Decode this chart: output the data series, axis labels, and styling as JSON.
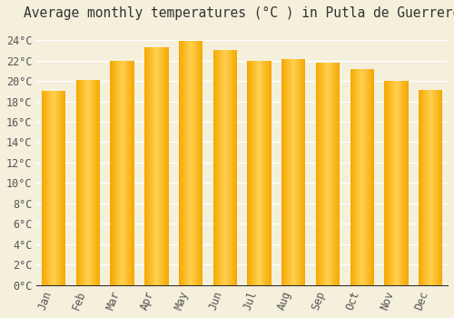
{
  "title": "Average monthly temperatures (°C ) in Putla de Guerrero",
  "months": [
    "Jan",
    "Feb",
    "Mar",
    "Apr",
    "May",
    "Jun",
    "Jul",
    "Aug",
    "Sep",
    "Oct",
    "Nov",
    "Dec"
  ],
  "values": [
    19.0,
    20.1,
    22.0,
    23.3,
    23.9,
    23.0,
    22.0,
    22.1,
    21.8,
    21.2,
    20.0,
    19.1
  ],
  "bar_color_center": "#FFD050",
  "bar_color_edge": "#F5A800",
  "background_color": "#F5F0DC",
  "grid_color": "#FFFFFF",
  "ytick_labels": [
    "0°C",
    "2°C",
    "4°C",
    "6°C",
    "8°C",
    "10°C",
    "12°C",
    "14°C",
    "16°C",
    "18°C",
    "20°C",
    "22°C",
    "24°C"
  ],
  "ytick_values": [
    0,
    2,
    4,
    6,
    8,
    10,
    12,
    14,
    16,
    18,
    20,
    22,
    24
  ],
  "ylim": [
    0,
    25.5
  ],
  "title_fontsize": 10.5,
  "tick_fontsize": 8.5
}
